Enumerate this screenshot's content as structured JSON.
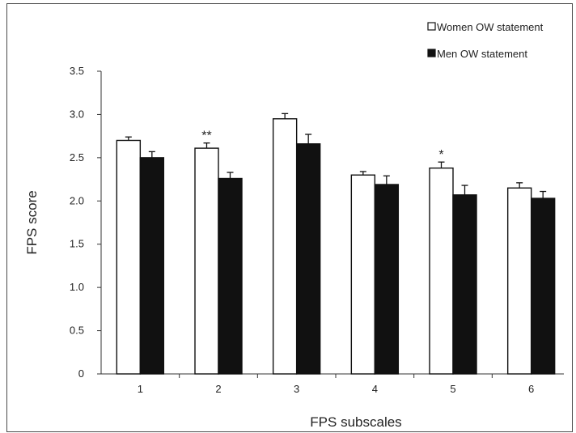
{
  "chart_data": {
    "type": "bar",
    "xlabel": "FPS subscales",
    "ylabel": "FPS score",
    "categories": [
      "1",
      "2",
      "3",
      "4",
      "5",
      "6"
    ],
    "ylim": [
      0,
      3.5
    ],
    "yticks": [
      0,
      0.5,
      1.0,
      1.5,
      2.0,
      2.5,
      3.0,
      3.5
    ],
    "ytick_labels": [
      "0",
      "0.5",
      "1.0",
      "1.5",
      "2.0",
      "2.5",
      "3.0",
      "3.5"
    ],
    "series": [
      {
        "name": "Women OW statement",
        "color": "#ffffff",
        "values": [
          2.7,
          2.61,
          2.95,
          2.3,
          2.38,
          2.15
        ],
        "errors": [
          0.04,
          0.06,
          0.06,
          0.04,
          0.07,
          0.06
        ]
      },
      {
        "name": "Men OW statement",
        "color": "#111111",
        "values": [
          2.5,
          2.26,
          2.66,
          2.19,
          2.07,
          2.03
        ],
        "errors": [
          0.07,
          0.07,
          0.11,
          0.1,
          0.11,
          0.08
        ]
      }
    ],
    "annotations": [
      {
        "category": "2",
        "text": "**"
      },
      {
        "category": "5",
        "text": "*"
      }
    ],
    "legend_position": "top-right",
    "grid": false
  }
}
